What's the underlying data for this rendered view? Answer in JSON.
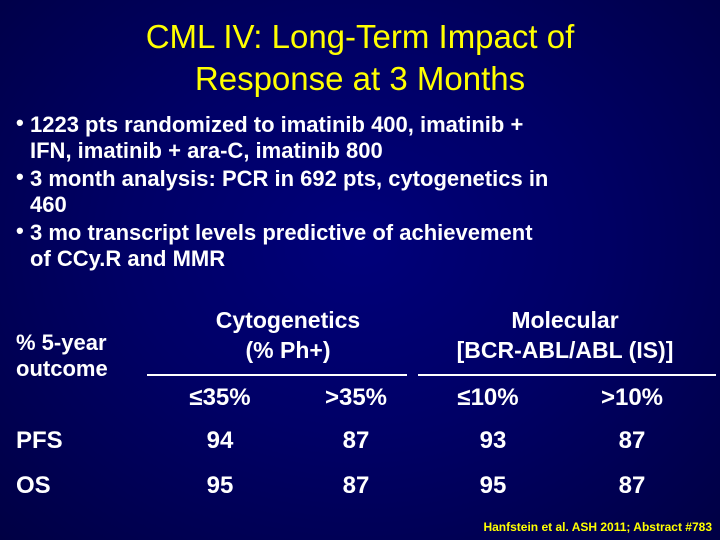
{
  "title": {
    "line1": "CML IV: Long-Term Impact of",
    "line2": "Response at 3 Months"
  },
  "bullets": [
    {
      "lines": [
        "1223 pts randomized to imatinib 400, imatinib +",
        "IFN, imatinib + ara-C, imatinib 800"
      ]
    },
    {
      "lines": [
        "3 month analysis: PCR in 692 pts, cytogenetics in",
        "460"
      ]
    },
    {
      "lines": [
        "3 mo transcript levels predictive of achievement",
        "of CCy.R and MMR"
      ]
    }
  ],
  "table": {
    "corner_line1": "% 5-year",
    "corner_line2": "outcome",
    "cyto_line1": "Cytogenetics",
    "cyto_line2": "(% Ph+)",
    "mol_line1": "Molecular",
    "mol_line2": "[BCR-ABL/ABL (IS)]",
    "sub": [
      "≤35%",
      ">35%",
      "≤10%",
      ">10%"
    ],
    "rows": [
      {
        "label": "PFS",
        "values": [
          "94",
          "87",
          "93",
          "87"
        ]
      },
      {
        "label": "OS",
        "values": [
          "95",
          "87",
          "95",
          "87"
        ]
      }
    ]
  },
  "citation": "Hanfstein et al. ASH 2011; Abstract #783",
  "colors": {
    "background": "#000066",
    "title": "#ffff00",
    "text": "#ffffff",
    "citation": "#ffff00"
  }
}
